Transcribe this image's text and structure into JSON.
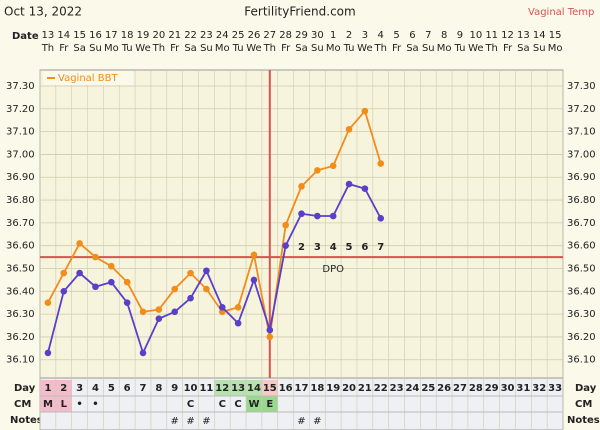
{
  "chart_data": {
    "type": "line",
    "date_stamp": "Oct 13, 2022",
    "site": "FertilityFriend.com",
    "corner_label": "Vaginal Temp",
    "date_label": "Date",
    "x": [
      13,
      14,
      15,
      16,
      17,
      18,
      19,
      20,
      21,
      22,
      23,
      24,
      25,
      26,
      27,
      28,
      29,
      30,
      1,
      2,
      3,
      4,
      5,
      6,
      7,
      8,
      9,
      10,
      11,
      12,
      13,
      14,
      15
    ],
    "weekdays": [
      "Th",
      "Fr",
      "Sa",
      "Su",
      "Mo",
      "Tu",
      "We",
      "Th",
      "Fr",
      "Sa",
      "Su",
      "Mo",
      "Tu",
      "We",
      "Th",
      "Fr",
      "Sa",
      "Su",
      "Mo",
      "Tu",
      "We",
      "Th",
      "Fr",
      "Sa",
      "Su",
      "Mo",
      "Tu",
      "We",
      "Th",
      "Fr",
      "Sa",
      "Su",
      "Mo"
    ],
    "series": [
      {
        "name": "Vaginal BBT",
        "color": "#f28c1a",
        "values": [
          36.35,
          36.48,
          36.61,
          36.55,
          36.51,
          36.44,
          36.31,
          36.32,
          36.41,
          36.48,
          36.41,
          36.31,
          36.33,
          36.56,
          36.2,
          36.69,
          36.86,
          36.93,
          36.95,
          37.11,
          37.19,
          36.96,
          null,
          null,
          null,
          null,
          null,
          null,
          null,
          null,
          null,
          null,
          null
        ]
      },
      {
        "color": "#5b3fc9",
        "values": [
          36.13,
          36.4,
          36.48,
          36.42,
          36.44,
          36.35,
          36.13,
          36.28,
          36.31,
          36.37,
          36.49,
          36.33,
          36.26,
          36.45,
          36.23,
          36.6,
          36.74,
          36.73,
          36.73,
          36.87,
          36.85,
          36.72,
          null,
          null,
          null,
          null,
          null,
          null,
          null,
          null,
          null,
          null,
          null
        ]
      }
    ],
    "ylim": [
      36.02,
      37.37
    ],
    "yticks": [
      {
        "value": 36.1,
        "label": "36.10"
      },
      {
        "value": 36.2,
        "label": "36.20"
      },
      {
        "value": 36.3,
        "label": "36.30"
      },
      {
        "value": 36.4,
        "label": "36.40"
      },
      {
        "value": 36.5,
        "label": "36.50"
      },
      {
        "value": 36.6,
        "label": "36.60"
      },
      {
        "value": 36.7,
        "label": "36.70"
      },
      {
        "value": 36.8,
        "label": "36.80"
      },
      {
        "value": 36.9,
        "label": "36.90"
      },
      {
        "value": 37.0,
        "label": "37.00"
      },
      {
        "value": 37.1,
        "label": "37.10"
      },
      {
        "value": 37.2,
        "label": "37.20"
      },
      {
        "value": 37.3,
        "label": "37.30"
      }
    ],
    "grid": true,
    "coverline": 36.55,
    "coverline_color": "#d9534f",
    "ovulation_day": 15,
    "dpo_label": "DPO",
    "dpo": [
      null,
      null,
      null,
      null,
      null,
      null,
      null,
      null,
      null,
      null,
      null,
      null,
      null,
      null,
      null,
      null,
      2,
      3,
      4,
      5,
      6,
      7,
      null,
      null,
      null,
      null,
      null,
      null,
      null,
      null,
      null,
      null,
      null
    ],
    "day_label": "Day",
    "days": [
      1,
      2,
      3,
      4,
      5,
      6,
      7,
      8,
      9,
      10,
      11,
      12,
      13,
      14,
      15,
      16,
      17,
      18,
      19,
      20,
      21,
      22,
      23,
      24,
      25,
      26,
      27,
      28,
      29,
      30,
      31,
      32,
      33
    ],
    "day_fill": [
      "#f2bccb",
      "#f2bccb",
      null,
      null,
      null,
      null,
      null,
      null,
      null,
      null,
      null,
      "#b7e2b0",
      "#b7e2b0",
      "#b7e2b0",
      "#f6c9c4",
      null,
      null,
      null,
      null,
      null,
      null,
      null,
      null,
      null,
      null,
      null,
      null,
      null,
      null,
      null,
      null,
      null,
      null
    ],
    "cm_label": "CM",
    "cm": [
      "M",
      "L",
      "•",
      "•",
      null,
      null,
      null,
      null,
      null,
      "C",
      null,
      "C",
      "C",
      "W",
      "E",
      null,
      null,
      null,
      null,
      null,
      null,
      null,
      null,
      null,
      null,
      null,
      null,
      null,
      null,
      null,
      null,
      null,
      null
    ],
    "cm_fill": [
      "#f2bccb",
      "#f2bccb",
      null,
      null,
      null,
      null,
      null,
      null,
      null,
      null,
      null,
      null,
      null,
      "#9ad88f",
      "#9ad88f",
      null,
      null,
      null,
      null,
      null,
      null,
      null,
      null,
      null,
      null,
      null,
      null,
      null,
      null,
      null,
      null,
      null,
      null
    ],
    "notes_label": "Notes",
    "notes": [
      null,
      null,
      null,
      null,
      null,
      null,
      null,
      null,
      "#",
      "#",
      "#",
      null,
      null,
      null,
      null,
      null,
      "#",
      "#",
      null,
      null,
      null,
      null,
      null,
      null,
      null,
      null,
      null,
      null,
      null,
      null,
      null,
      null,
      null
    ]
  }
}
